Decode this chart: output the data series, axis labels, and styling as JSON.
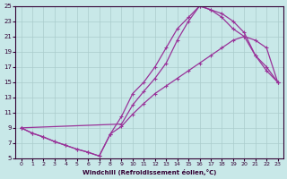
{
  "xlabel": "Windchill (Refroidissement éolien,°C)",
  "bg_color": "#c8e8e8",
  "grid_color": "#aacccc",
  "line_color": "#993399",
  "marker": "+",
  "xlim": [
    -0.5,
    23.5
  ],
  "ylim": [
    5,
    25
  ],
  "xticks": [
    0,
    1,
    2,
    3,
    4,
    5,
    6,
    7,
    8,
    9,
    10,
    11,
    12,
    13,
    14,
    15,
    16,
    17,
    18,
    19,
    20,
    21,
    22,
    23
  ],
  "yticks": [
    5,
    7,
    9,
    11,
    13,
    15,
    17,
    19,
    21,
    23,
    25
  ],
  "curve1_x": [
    0,
    1,
    2,
    3,
    4,
    5,
    6,
    7,
    8,
    9,
    10,
    11,
    12,
    13,
    14,
    15,
    16,
    17,
    18,
    19,
    20,
    21,
    22,
    23
  ],
  "curve1_y": [
    9,
    8.3,
    7.8,
    7.2,
    6.7,
    6.2,
    5.8,
    5.3,
    8.2,
    9.2,
    10.8,
    12.2,
    13.5,
    14.5,
    15.5,
    16.5,
    17.5,
    18.5,
    19.5,
    20.5,
    21.0,
    20.5,
    19.5,
    15.0
  ],
  "curve2_x": [
    0,
    1,
    2,
    3,
    4,
    5,
    6,
    7,
    8,
    9,
    10,
    11,
    12,
    13,
    14,
    15,
    16,
    17,
    18,
    19,
    20,
    21,
    22,
    23
  ],
  "curve2_y": [
    9,
    8.3,
    7.8,
    7.2,
    6.7,
    6.2,
    5.8,
    5.3,
    8.2,
    10.5,
    13.5,
    15.0,
    17.0,
    19.5,
    22.0,
    23.5,
    25.0,
    24.5,
    24.0,
    23.0,
    21.5,
    18.5,
    17.0,
    15.0
  ],
  "curve3_x": [
    0,
    9,
    10,
    11,
    12,
    13,
    14,
    15,
    16,
    17,
    18,
    19,
    20,
    21,
    22,
    23
  ],
  "curve3_y": [
    9,
    9.5,
    12.0,
    13.8,
    15.5,
    17.5,
    20.5,
    23.0,
    25.0,
    24.5,
    23.5,
    22.0,
    21.0,
    18.5,
    16.5,
    15.0
  ]
}
